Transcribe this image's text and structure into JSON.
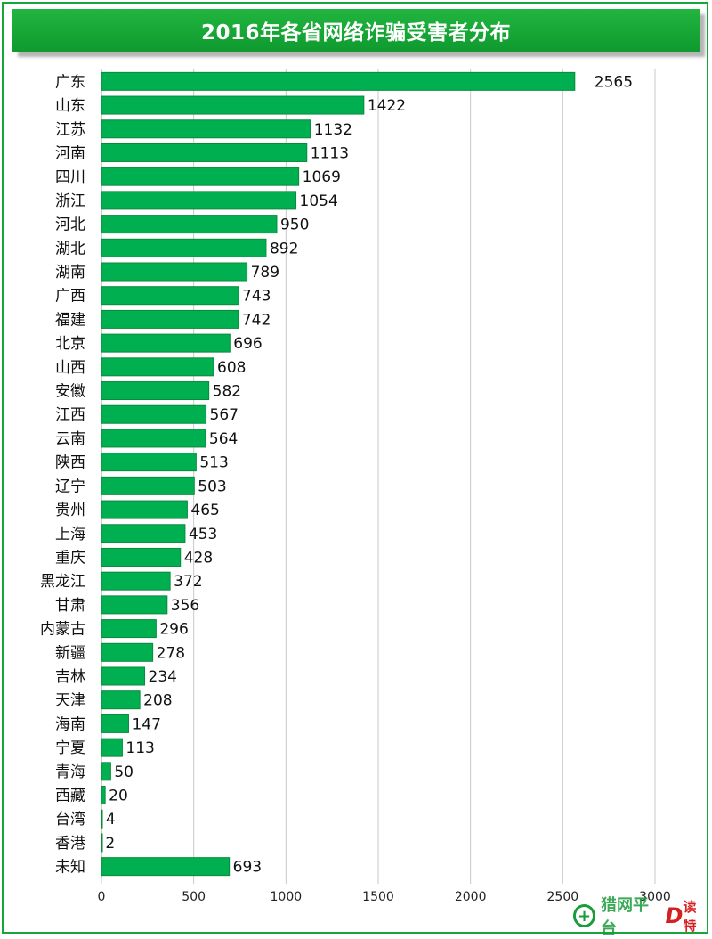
{
  "colors": {
    "bar": "#00b050",
    "bar_edge": "#0a8a3a",
    "grid": "#c8c8c8",
    "header": "#16a63a"
  },
  "chart_data": {
    "type": "bar",
    "orientation": "horizontal",
    "title": "2016年各省网络诈骗受害者分布",
    "categories": [
      "广东",
      "山东",
      "江苏",
      "河南",
      "四川",
      "浙江",
      "河北",
      "湖北",
      "湖南",
      "广西",
      "福建",
      "北京",
      "山西",
      "安徽",
      "江西",
      "云南",
      "陕西",
      "辽宁",
      "贵州",
      "上海",
      "重庆",
      "黑龙江",
      "甘肃",
      "内蒙古",
      "新疆",
      "吉林",
      "天津",
      "海南",
      "宁夏",
      "青海",
      "西藏",
      "台湾",
      "香港",
      "未知"
    ],
    "values": [
      2565,
      1422,
      1132,
      1113,
      1069,
      1054,
      950,
      892,
      789,
      743,
      742,
      696,
      608,
      582,
      567,
      564,
      513,
      503,
      465,
      453,
      428,
      372,
      356,
      296,
      278,
      234,
      208,
      147,
      113,
      50,
      20,
      4,
      2,
      693
    ],
    "xlim": [
      0,
      3000
    ],
    "xticks": [
      0,
      500,
      1000,
      1500,
      2000,
      2500,
      3000
    ],
    "xlabel": "",
    "ylabel": "",
    "grid": "vertical"
  },
  "watermark": {
    "text": "猎网平台",
    "brand": "读特"
  }
}
